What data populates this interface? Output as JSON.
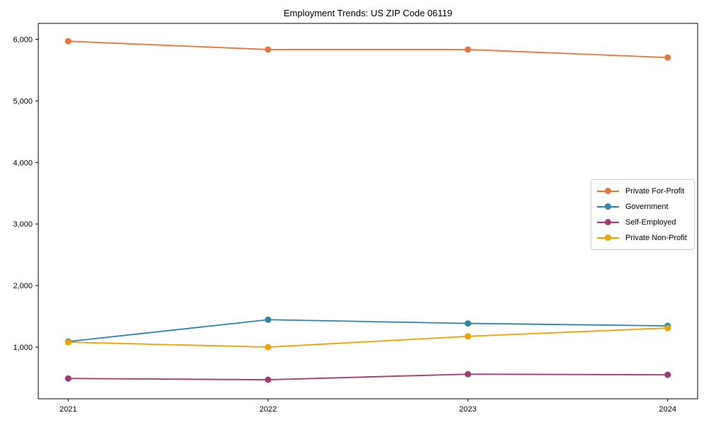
{
  "chart_data": {
    "type": "line",
    "title": "Employment Trends: US ZIP Code 06119",
    "xlabel": "",
    "ylabel": "",
    "grid": false,
    "legend_position": "center-right",
    "x": [
      2021,
      2022,
      2023,
      2024
    ],
    "x_tick_labels": [
      "2021",
      "2022",
      "2023",
      "2024"
    ],
    "y_ticks": [
      1000,
      2000,
      3000,
      4000,
      5000,
      6000
    ],
    "y_tick_labels": [
      "1,000",
      "2,000",
      "3,000",
      "4,000",
      "5,000",
      "6,000"
    ],
    "xlim": [
      2020.85,
      2024.15
    ],
    "ylim": [
      160,
      6260
    ],
    "series": [
      {
        "name": "Private For-Profit",
        "color": "#E8763C",
        "values": [
          5970,
          5835,
          5835,
          5705
        ]
      },
      {
        "name": "Government",
        "color": "#2E86AB",
        "values": [
          1090,
          1445,
          1385,
          1345
        ]
      },
      {
        "name": "Self-Employed",
        "color": "#A23B72",
        "values": [
          490,
          470,
          560,
          550
        ]
      },
      {
        "name": "Private Non-Profit",
        "color": "#F0A202",
        "values": [
          1080,
          1000,
          1175,
          1310
        ]
      }
    ],
    "axis_color": "#000000"
  }
}
